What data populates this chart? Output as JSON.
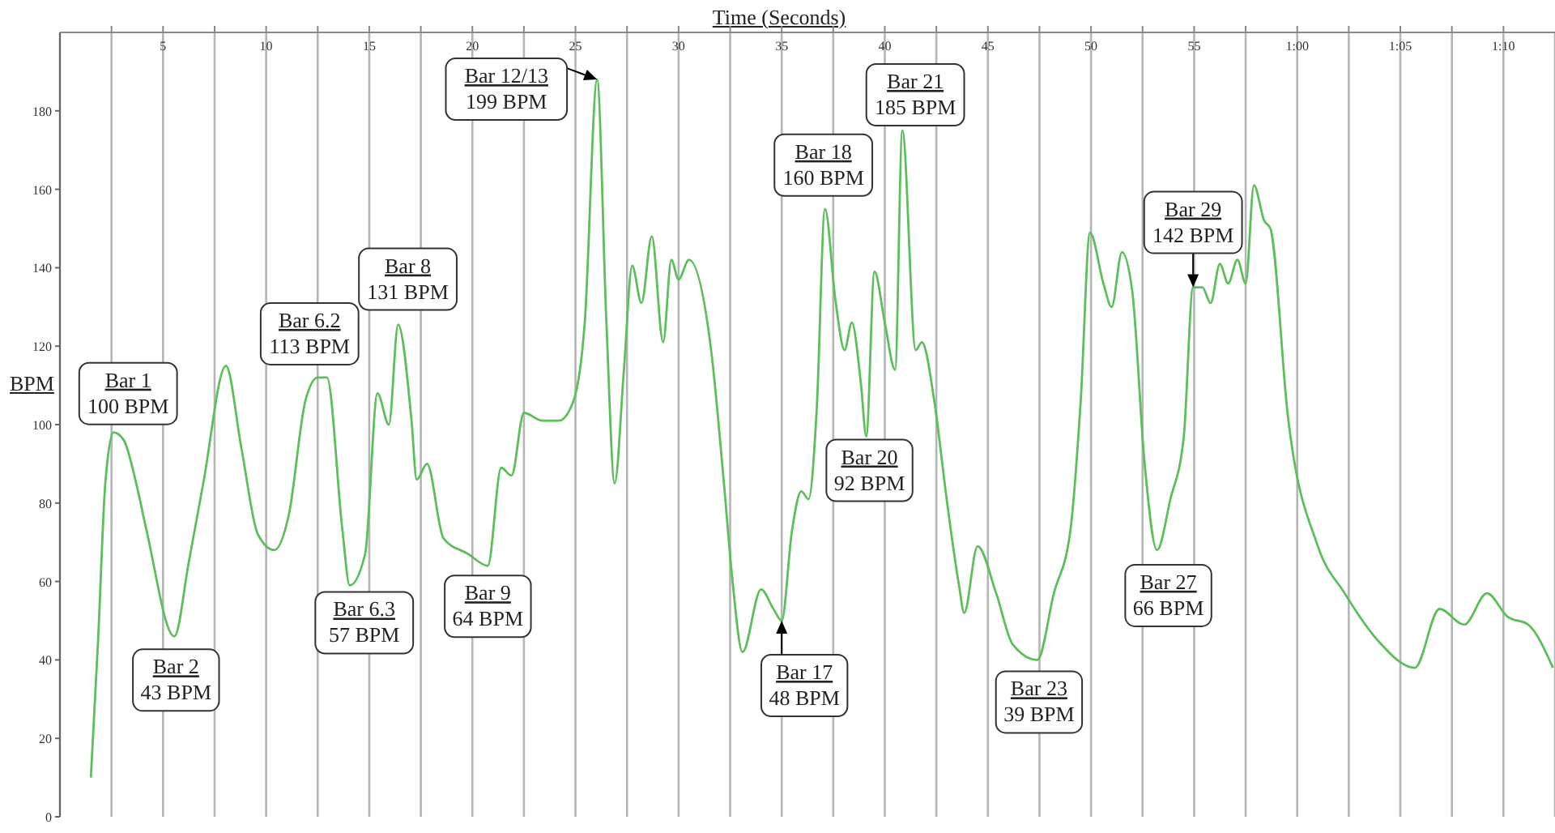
{
  "chart_data": {
    "type": "line",
    "xlabel": "Time (Seconds)",
    "ylabel": "BPM",
    "x": [
      1.5,
      1.85,
      2.2,
      2.6,
      3.1,
      3.7,
      4.2,
      5.55,
      6.25,
      6.95,
      8.05,
      8.8,
      9.6,
      10.4,
      11.1,
      11.9,
      12.5,
      12.95,
      13.7,
      14.05,
      14.8,
      15.4,
      15.95,
      16.4,
      17.05,
      17.3,
      17.8,
      18.6,
      19.8,
      20.75,
      21.4,
      21.9,
      22.5,
      23.4,
      24.2,
      24.9,
      25.45,
      26.05,
      26.5,
      26.9,
      27.35,
      27.75,
      28.2,
      28.7,
      29.25,
      29.65,
      30.0,
      30.5,
      31.6,
      32.2,
      32.6,
      33.1,
      34.0,
      34.6,
      35.0,
      35.5,
      35.95,
      36.3,
      36.7,
      37.1,
      37.6,
      38.05,
      38.4,
      38.85,
      39.1,
      39.5,
      40.0,
      40.5,
      40.85,
      41.5,
      41.8,
      42.4,
      43.0,
      43.6,
      43.85,
      44.5,
      45.4,
      46.2,
      47.4,
      48.2,
      49.0,
      49.5,
      49.95,
      50.6,
      51.0,
      51.5,
      52.0,
      52.6,
      53.2,
      53.85,
      54.5,
      54.95,
      55.4,
      55.8,
      56.25,
      56.65,
      57.1,
      57.5,
      57.9,
      58.4,
      58.7,
      59.55,
      61.0,
      62.3,
      63.9,
      65.7,
      66.9,
      68.1,
      69.2,
      70.2,
      71.2,
      72.4
    ],
    "series": [
      {
        "color": "#5cbf5c",
        "values": [
          10,
          45,
          85,
          98,
          96,
          85,
          73,
          46,
          65,
          85,
          115,
          94,
          72,
          68,
          77,
          106,
          112,
          112,
          73,
          59,
          67,
          108,
          100,
          125.5,
          101,
          86,
          90,
          71,
          67,
          64,
          89,
          87,
          103,
          101,
          101,
          106,
          126,
          188,
          126,
          85,
          114,
          140.5,
          131,
          148,
          121,
          142,
          137,
          142,
          118,
          85,
          61,
          42,
          58,
          53,
          50,
          73,
          83,
          81,
          104,
          155,
          132,
          119,
          126,
          110,
          97,
          139,
          126,
          114,
          175,
          119,
          121,
          106,
          81,
          59,
          52,
          69,
          57,
          44,
          40,
          57,
          73,
          106,
          149,
          136,
          130,
          144,
          134,
          90,
          68,
          81,
          97,
          135,
          135,
          131,
          141,
          136,
          142,
          136,
          161,
          152,
          150,
          102,
          69,
          57,
          45,
          38,
          53,
          49,
          57,
          51,
          49,
          38
        ]
      }
    ],
    "xlim": [
      0,
      72.5
    ],
    "ylim": [
      0,
      200
    ],
    "xticks": [
      {
        "value": 2.5,
        "label": null
      },
      5,
      {
        "value": 7.5,
        "label": null
      },
      10,
      {
        "value": 12.5,
        "label": null
      },
      15,
      {
        "value": 17.5,
        "label": null
      },
      20,
      {
        "value": 22.5,
        "label": null
      },
      25,
      {
        "value": 27.5,
        "label": null
      },
      30,
      {
        "value": 32.5,
        "label": null
      },
      35,
      {
        "value": 37.5,
        "label": null
      },
      40,
      {
        "value": 42.5,
        "label": null
      },
      45,
      {
        "value": 47.5,
        "label": null
      },
      50,
      {
        "value": 52.5,
        "label": null
      },
      55,
      {
        "value": 57.5,
        "label": null
      },
      {
        "value": 60,
        "label": "1:00"
      },
      {
        "value": 62.5,
        "label": null
      },
      {
        "value": 65,
        "label": "1:05"
      },
      {
        "value": 67.5,
        "label": null
      },
      {
        "value": 70,
        "label": "1:10"
      }
    ],
    "yticks": [
      0,
      20,
      40,
      60,
      80,
      100,
      120,
      140,
      160,
      180
    ],
    "grid": "x",
    "marker": "none",
    "line_style": "solid",
    "annotations": [
      {
        "text": "Bar 1\n100 BPM",
        "x": 2.6,
        "y": 98
      },
      {
        "text": "Bar 2\n43 BPM",
        "x": 5.55,
        "y": 46
      },
      {
        "text": "Bar 6.2\n113 BPM",
        "x": 12.5,
        "y": 112
      },
      {
        "text": "Bar 6.3\n57 BPM",
        "x": 14.05,
        "y": 59
      },
      {
        "text": "Bar 8\n131 BPM",
        "x": 16.4,
        "y": 125.5
      },
      {
        "text": "Bar 9\n64 BPM",
        "x": 20.75,
        "y": 64
      },
      {
        "text": "Bar 12/13\n199 BPM",
        "x": 26.05,
        "y": 188
      },
      {
        "text": "Bar 17\n48 BPM",
        "x": 35,
        "y": 50
      },
      {
        "text": "Bar 18\n160 BPM",
        "x": 37.1,
        "y": 155
      },
      {
        "text": "Bar 20\n92 BPM",
        "x": 39.1,
        "y": 97
      },
      {
        "text": "Bar 21\n185 BPM",
        "x": 40.85,
        "y": 175
      },
      {
        "text": "Bar 23\n39 BPM",
        "x": 47.4,
        "y": 40
      },
      {
        "text": "Bar 27\n66 BPM",
        "x": 53.2,
        "y": 68
      },
      {
        "text": "Bar 29\n142 BPM",
        "x": 54.95,
        "y": 135
      }
    ]
  }
}
